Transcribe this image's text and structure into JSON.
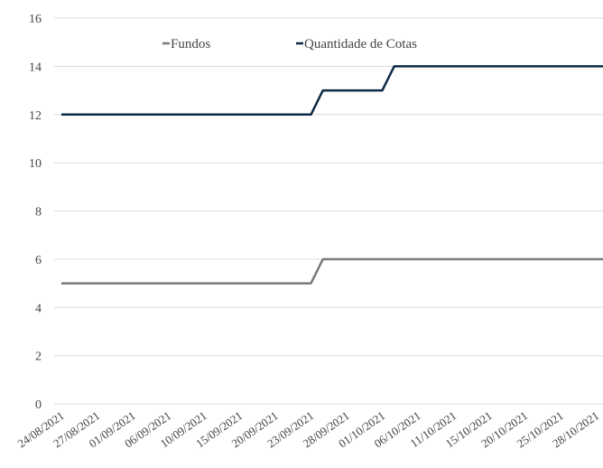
{
  "chart_data": {
    "type": "line",
    "categories": [
      "24/08/2021",
      null,
      null,
      "27/08/2021",
      null,
      null,
      "01/09/2021",
      null,
      null,
      "06/09/2021",
      null,
      null,
      "10/09/2021",
      null,
      null,
      "15/09/2021",
      null,
      null,
      "20/09/2021",
      null,
      null,
      "23/09/2021",
      null,
      null,
      "28/09/2021",
      null,
      null,
      "01/10/2021",
      null,
      null,
      "06/10/2021",
      null,
      null,
      "11/10/2021",
      null,
      null,
      "15/10/2021",
      null,
      null,
      "20/10/2021",
      null,
      null,
      "25/10/2021",
      null,
      null,
      "28/10/2021",
      null
    ],
    "series": [
      {
        "name": "Fundos",
        "color": "#7a7a7a",
        "values": [
          5,
          5,
          5,
          5,
          5,
          5,
          5,
          5,
          5,
          5,
          5,
          5,
          5,
          5,
          5,
          5,
          5,
          5,
          5,
          5,
          5,
          5,
          6,
          6,
          6,
          6,
          6,
          6,
          6,
          6,
          6,
          6,
          6,
          6,
          6,
          6,
          6,
          6,
          6,
          6,
          6,
          6,
          6,
          6,
          6,
          6,
          6
        ]
      },
      {
        "name": "Quantidade de Cotas",
        "color": "#0d2a45",
        "values": [
          12,
          12,
          12,
          12,
          12,
          12,
          12,
          12,
          12,
          12,
          12,
          12,
          12,
          12,
          12,
          12,
          12,
          12,
          12,
          12,
          12,
          12,
          13,
          13,
          13,
          13,
          13,
          13,
          14,
          14,
          14,
          14,
          14,
          14,
          14,
          14,
          14,
          14,
          14,
          14,
          14,
          14,
          14,
          14,
          14,
          14,
          14
        ]
      }
    ],
    "ylim": [
      0,
      16
    ],
    "yticks": [
      0,
      2,
      4,
      6,
      8,
      10,
      12,
      14,
      16
    ],
    "grid": true,
    "legend": "top"
  }
}
